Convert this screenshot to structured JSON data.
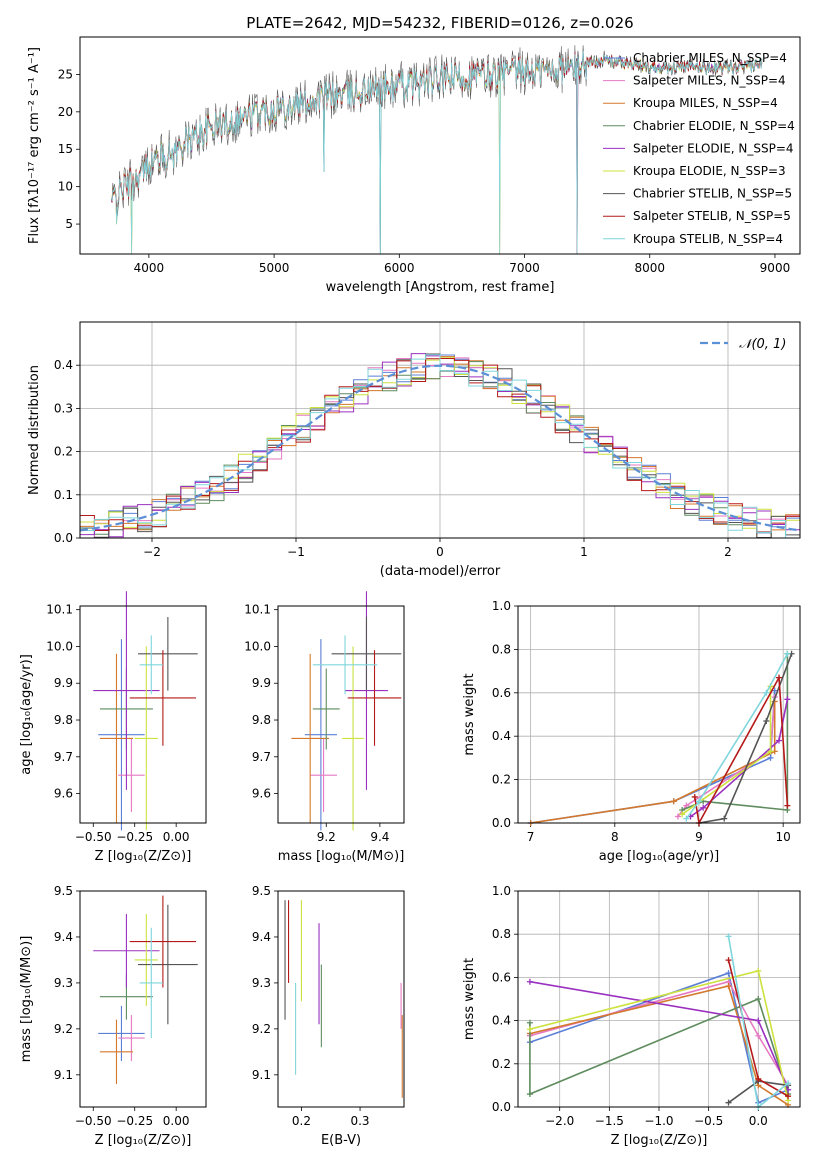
{
  "figure": {
    "title": "PLATE=2642, MJD=54232, FIBERID=0126, z=0.026"
  },
  "chart_data": [
    {
      "id": "spectrum",
      "type": "line",
      "title": "PLATE=2642, MJD=54232, FIBERID=0126, z=0.026",
      "xlabel": "wavelength [Angstrom, rest frame]",
      "ylabel": "Flux [fλ10⁻¹⁷ erg cm⁻² s⁻¹ A⁻¹]",
      "xlim": [
        3450,
        9200
      ],
      "ylim": [
        1,
        30
      ],
      "xticks": [
        4000,
        5000,
        6000,
        7000,
        8000,
        9000
      ],
      "yticks": [
        5,
        10,
        15,
        20,
        25
      ],
      "grid": false,
      "legend": "top-right",
      "continuum": [
        [
          3700,
          8
        ],
        [
          3800,
          10
        ],
        [
          3900,
          11
        ],
        [
          4000,
          13
        ],
        [
          4100,
          14
        ],
        [
          4200,
          14.5
        ],
        [
          4300,
          16
        ],
        [
          4400,
          17
        ],
        [
          4500,
          18
        ],
        [
          4600,
          18.5
        ],
        [
          4700,
          19
        ],
        [
          4800,
          19.5
        ],
        [
          4900,
          20
        ],
        [
          5000,
          20.5
        ],
        [
          5200,
          21
        ],
        [
          5400,
          22
        ],
        [
          5600,
          22.5
        ],
        [
          5800,
          23
        ],
        [
          6000,
          23.5
        ],
        [
          6200,
          24
        ],
        [
          6400,
          24.5
        ],
        [
          6600,
          24.8
        ],
        [
          6800,
          25
        ],
        [
          7000,
          25.3
        ],
        [
          7200,
          25.6
        ],
        [
          7400,
          26
        ],
        [
          7600,
          27
        ],
        [
          7800,
          26.5
        ],
        [
          8000,
          26
        ],
        [
          8200,
          26
        ],
        [
          8400,
          26
        ],
        [
          8600,
          25.8
        ],
        [
          8800,
          26
        ],
        [
          8900,
          26.5
        ]
      ],
      "spikes": [
        [
          5400,
          12
        ],
        [
          5850,
          1
        ],
        [
          6800,
          1
        ],
        [
          7420,
          1
        ],
        [
          3860,
          1
        ],
        [
          3740,
          5
        ]
      ],
      "series": [
        {
          "name": "Chabrier MILES, N_SSP=4",
          "color": "#5b7fd6"
        },
        {
          "name": "Salpeter MILES, N_SSP=4",
          "color": "#e67ac3"
        },
        {
          "name": "Kroupa MILES, N_SSP=4",
          "color": "#d4782c"
        },
        {
          "name": "Chabrier ELODIE, N_SSP=4",
          "color": "#5e8c5e"
        },
        {
          "name": "Salpeter ELODIE, N_SSP=4",
          "color": "#9b30c0"
        },
        {
          "name": "Kroupa ELODIE, N_SSP=3",
          "color": "#cde23f"
        },
        {
          "name": "Chabrier STELIB, N_SSP=5",
          "color": "#555555"
        },
        {
          "name": "Salpeter STELIB, N_SSP=5",
          "color": "#b51a1a"
        },
        {
          "name": "Kroupa STELIB, N_SSP=4",
          "color": "#7fd6dc"
        }
      ]
    },
    {
      "id": "residuals",
      "type": "line",
      "xlabel": "(data-model)/error",
      "ylabel": "Normed distribution",
      "xlim": [
        -2.5,
        2.5
      ],
      "ylim": [
        0,
        0.5
      ],
      "xticks": [
        -2,
        -1,
        0,
        1,
        2
      ],
      "xtick_labels": [
        "−2",
        "−1",
        "0",
        "1",
        "2"
      ],
      "yticks": [
        0.0,
        0.1,
        0.2,
        0.3,
        0.4
      ],
      "grid": true,
      "legend": "top-right",
      "legend_label": "𝒩(0, 1)",
      "gaussian": {
        "mean": 0,
        "sigma": 1,
        "color": "#5b8fd6"
      }
    },
    {
      "id": "age_vs_Z",
      "type": "scatter",
      "xlabel": "Z [log₁₀(Z/Z⊙)]",
      "ylabel": "age [log₁₀(age/yr)]",
      "xlim": [
        -0.58,
        0.18
      ],
      "ylim": [
        9.52,
        10.11
      ],
      "xticks": [
        -0.5,
        -0.25,
        0.0
      ],
      "xtick_labels": [
        "−0.50",
        "−0.25",
        "0.00"
      ],
      "yticks": [
        9.6,
        9.7,
        9.8,
        9.9,
        10.0,
        10.1
      ],
      "points": [
        {
          "x": -0.33,
          "xerr": 0.14,
          "y": 9.76,
          "yerr": 0.26,
          "color": "#5b7fd6"
        },
        {
          "x": -0.27,
          "xerr": 0.08,
          "y": 9.65,
          "yerr": 0.1,
          "color": "#e67ac3"
        },
        {
          "x": -0.36,
          "xerr": 0.1,
          "y": 9.75,
          "yerr": 0.23,
          "color": "#d4782c"
        },
        {
          "x": -0.3,
          "xerr": 0.16,
          "y": 9.83,
          "yerr": 0.11,
          "color": "#5e8c5e"
        },
        {
          "x": -0.3,
          "xerr": 0.2,
          "y": 9.88,
          "yerr": 0.27,
          "color": "#9b30c0"
        },
        {
          "x": -0.18,
          "xerr": 0.07,
          "y": 9.75,
          "yerr": 0.25,
          "color": "#cde23f"
        },
        {
          "x": -0.05,
          "xerr": 0.18,
          "y": 9.98,
          "yerr": 0.1,
          "color": "#555555"
        },
        {
          "x": -0.08,
          "xerr": 0.2,
          "y": 9.86,
          "yerr": 0.13,
          "color": "#b51a1a"
        },
        {
          "x": -0.15,
          "xerr": 0.07,
          "y": 9.95,
          "yerr": 0.08,
          "color": "#7fd6dc"
        }
      ]
    },
    {
      "id": "age_vs_mass",
      "type": "scatter",
      "xlabel": "mass [log₁₀(M/M⊙)]",
      "ylabel": "",
      "xlim": [
        9.02,
        9.49
      ],
      "ylim": [
        9.52,
        10.11
      ],
      "xticks": [
        9.2,
        9.4
      ],
      "yticks": [
        9.6,
        9.7,
        9.8,
        9.9,
        10.0,
        10.1
      ],
      "points": [
        {
          "x": 9.18,
          "xerr": 0.06,
          "y": 9.76,
          "yerr": 0.26,
          "color": "#5b7fd6"
        },
        {
          "x": 9.19,
          "xerr": 0.05,
          "y": 9.65,
          "yerr": 0.1,
          "color": "#e67ac3"
        },
        {
          "x": 9.14,
          "xerr": 0.07,
          "y": 9.75,
          "yerr": 0.23,
          "color": "#d4782c"
        },
        {
          "x": 9.2,
          "xerr": 0.05,
          "y": 9.83,
          "yerr": 0.11,
          "color": "#5e8c5e"
        },
        {
          "x": 9.35,
          "xerr": 0.08,
          "y": 9.88,
          "yerr": 0.27,
          "color": "#9b30c0"
        },
        {
          "x": 9.3,
          "xerr": 0.04,
          "y": 9.75,
          "yerr": 0.25,
          "color": "#cde23f"
        },
        {
          "x": 9.35,
          "xerr": 0.13,
          "y": 9.98,
          "yerr": 0.1,
          "color": "#555555"
        },
        {
          "x": 9.38,
          "xerr": 0.1,
          "y": 9.86,
          "yerr": 0.13,
          "color": "#b51a1a"
        },
        {
          "x": 9.27,
          "xerr": 0.12,
          "y": 9.95,
          "yerr": 0.08,
          "color": "#7fd6dc"
        }
      ]
    },
    {
      "id": "weight_vs_age",
      "type": "line",
      "xlabel": "age [log₁₀(age/yr)]",
      "ylabel": "mass weight",
      "xlim": [
        6.85,
        10.2
      ],
      "ylim": [
        0,
        1
      ],
      "xticks": [
        7,
        8,
        9,
        10
      ],
      "yticks": [
        0.0,
        0.2,
        0.4,
        0.6,
        0.8,
        1.0
      ],
      "grid": true,
      "series": [
        {
          "color": "#5b7fd6",
          "points": [
            [
              7.0,
              0.0
            ],
            [
              8.7,
              0.1
            ],
            [
              9.85,
              0.3
            ],
            [
              9.9,
              0.61
            ]
          ]
        },
        {
          "color": "#e67ac3",
          "points": [
            [
              8.75,
              0.03
            ],
            [
              8.85,
              0.08
            ],
            [
              9.85,
              0.33
            ],
            [
              9.9,
              0.58
            ]
          ]
        },
        {
          "color": "#d4782c",
          "points": [
            [
              7.0,
              0.0
            ],
            [
              8.7,
              0.1
            ],
            [
              9.9,
              0.33
            ],
            [
              9.9,
              0.56
            ]
          ]
        },
        {
          "color": "#5e8c5e",
          "points": [
            [
              8.8,
              0.06
            ],
            [
              9.05,
              0.1
            ],
            [
              10.05,
              0.06
            ],
            [
              10.05,
              0.78
            ]
          ]
        },
        {
          "color": "#9b30c0",
          "points": [
            [
              8.9,
              0.03
            ],
            [
              9.05,
              0.07
            ],
            [
              9.95,
              0.38
            ],
            [
              10.05,
              0.57
            ]
          ]
        },
        {
          "color": "#cde23f",
          "points": [
            [
              8.8,
              0.04
            ],
            [
              9.85,
              0.33
            ],
            [
              9.85,
              0.63
            ]
          ]
        },
        {
          "color": "#555555",
          "points": [
            [
              9.0,
              0.0
            ],
            [
              9.3,
              0.02
            ],
            [
              9.8,
              0.47
            ],
            [
              10.1,
              0.78
            ]
          ]
        },
        {
          "color": "#b51a1a",
          "points": [
            [
              8.95,
              0.12
            ],
            [
              9.0,
              0.0
            ],
            [
              9.95,
              0.67
            ],
            [
              10.05,
              0.08
            ]
          ]
        },
        {
          "color": "#7fd6dc",
          "points": [
            [
              8.85,
              0.02
            ],
            [
              9.0,
              0.1
            ],
            [
              9.8,
              0.6
            ],
            [
              10.05,
              0.78
            ]
          ]
        }
      ]
    },
    {
      "id": "mass_vs_Z",
      "type": "scatter",
      "xlabel": "Z [log₁₀(Z/Z⊙)]",
      "ylabel": "mass [log₁₀(M/M⊙)]",
      "xlim": [
        -0.58,
        0.18
      ],
      "ylim": [
        9.03,
        9.5
      ],
      "xticks": [
        -0.5,
        -0.25,
        0.0
      ],
      "xtick_labels": [
        "−0.50",
        "−0.25",
        "0.00"
      ],
      "yticks": [
        9.1,
        9.2,
        9.3,
        9.4,
        9.5
      ],
      "points": [
        {
          "x": -0.33,
          "xerr": 0.14,
          "y": 9.19,
          "yerr": 0.06,
          "color": "#5b7fd6"
        },
        {
          "x": -0.27,
          "xerr": 0.08,
          "y": 9.18,
          "yerr": 0.05,
          "color": "#e67ac3"
        },
        {
          "x": -0.36,
          "xerr": 0.1,
          "y": 9.15,
          "yerr": 0.07,
          "color": "#d4782c"
        },
        {
          "x": -0.3,
          "xerr": 0.16,
          "y": 9.27,
          "yerr": 0.05,
          "color": "#5e8c5e"
        },
        {
          "x": -0.3,
          "xerr": 0.2,
          "y": 9.37,
          "yerr": 0.08,
          "color": "#9b30c0"
        },
        {
          "x": -0.18,
          "xerr": 0.07,
          "y": 9.35,
          "yerr": 0.1,
          "color": "#cde23f"
        },
        {
          "x": -0.05,
          "xerr": 0.18,
          "y": 9.34,
          "yerr": 0.13,
          "color": "#555555"
        },
        {
          "x": -0.08,
          "xerr": 0.2,
          "y": 9.39,
          "yerr": 0.1,
          "color": "#b51a1a"
        },
        {
          "x": -0.15,
          "xerr": 0.07,
          "y": 9.3,
          "yerr": 0.12,
          "color": "#7fd6dc"
        }
      ]
    },
    {
      "id": "mass_vs_ebv",
      "type": "scatter",
      "xlabel": "E(B-V)",
      "ylabel": "",
      "xlim": [
        0.16,
        0.375
      ],
      "ylim": [
        9.03,
        9.5
      ],
      "xticks": [
        0.2,
        0.3
      ],
      "yticks": [
        9.1,
        9.2,
        9.3,
        9.4,
        9.5
      ],
      "points": [
        {
          "x": 0.172,
          "y": 9.35,
          "yerr": 0.13,
          "color": "#555555"
        },
        {
          "x": 0.178,
          "y": 9.39,
          "yerr": 0.09,
          "color": "#b51a1a"
        },
        {
          "x": 0.19,
          "y": 9.2,
          "yerr": 0.1,
          "color": "#7fd6dc"
        },
        {
          "x": 0.2,
          "y": 9.37,
          "yerr": 0.11,
          "color": "#cde23f"
        },
        {
          "x": 0.23,
          "y": 9.32,
          "yerr": 0.11,
          "color": "#9b30c0"
        },
        {
          "x": 0.234,
          "y": 9.25,
          "yerr": 0.09,
          "color": "#5e8c5e"
        },
        {
          "x": 0.37,
          "y": 9.25,
          "yerr": 0.05,
          "color": "#e67ac3"
        },
        {
          "x": 0.372,
          "y": 9.14,
          "yerr": 0.09,
          "color": "#d4782c"
        }
      ]
    },
    {
      "id": "weight_vs_Z",
      "type": "line",
      "xlabel": "Z [log₁₀(Z/Z⊙)]",
      "ylabel": "mass weight",
      "xlim": [
        -2.42,
        0.42
      ],
      "ylim": [
        0,
        1
      ],
      "xticks": [
        -2.0,
        -1.5,
        -1.0,
        -0.5,
        0.0
      ],
      "xtick_labels": [
        "−2.0",
        "−1.5",
        "−1.0",
        "−0.5",
        "0.0"
      ],
      "yticks": [
        0.0,
        0.2,
        0.4,
        0.6,
        0.8,
        1.0
      ],
      "grid": true,
      "series": [
        {
          "color": "#5b7fd6",
          "points": [
            [
              -2.3,
              0.3
            ],
            [
              -0.3,
              0.62
            ],
            [
              0.0,
              0.02
            ],
            [
              0.3,
              0.08
            ]
          ]
        },
        {
          "color": "#e67ac3",
          "points": [
            [
              -2.3,
              0.33
            ],
            [
              -0.3,
              0.58
            ],
            [
              0.0,
              0.33
            ],
            [
              0.3,
              0.1
            ]
          ]
        },
        {
          "color": "#d4782c",
          "points": [
            [
              -2.3,
              0.34
            ],
            [
              -0.3,
              0.56
            ],
            [
              0.0,
              0.1
            ],
            [
              0.3,
              0.01
            ]
          ]
        },
        {
          "color": "#5e8c5e",
          "points": [
            [
              -2.3,
              0.39
            ],
            [
              -2.3,
              0.06
            ],
            [
              0.0,
              0.5
            ],
            [
              0.3,
              0.06
            ]
          ]
        },
        {
          "color": "#9b30c0",
          "points": [
            [
              -2.3,
              0.58
            ],
            [
              0.0,
              0.4
            ],
            [
              0.3,
              0.08
            ]
          ]
        },
        {
          "color": "#cde23f",
          "points": [
            [
              -2.3,
              0.36
            ],
            [
              0.0,
              0.63
            ],
            [
              0.3,
              0.03
            ]
          ]
        },
        {
          "color": "#555555",
          "points": [
            [
              -0.3,
              0.02
            ],
            [
              0.0,
              0.12
            ],
            [
              0.3,
              0.1
            ]
          ]
        },
        {
          "color": "#b51a1a",
          "points": [
            [
              -0.3,
              0.68
            ],
            [
              0.0,
              0.13
            ],
            [
              0.3,
              0.05
            ]
          ]
        },
        {
          "color": "#7fd6dc",
          "points": [
            [
              -0.3,
              0.79
            ],
            [
              0.0,
              0.0
            ],
            [
              0.3,
              0.11
            ]
          ]
        }
      ]
    }
  ]
}
